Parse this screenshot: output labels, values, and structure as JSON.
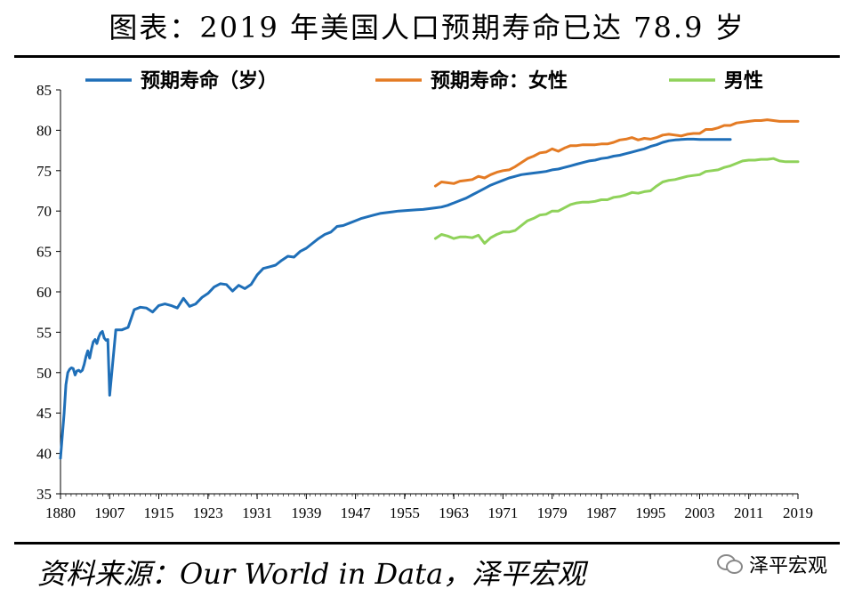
{
  "title": "图表：2019 年美国人口预期寿命已达 78.9 岁",
  "source": "资料来源：Our World in Data，泽平宏观",
  "watermark": "泽平宏观",
  "colors": {
    "total": "#1f6fb8",
    "female": "#e47b24",
    "male": "#8fd25a"
  },
  "chart_data": {
    "type": "line",
    "title": "图表：2019 年美国人口预期寿命已达 78.9 岁",
    "xlabel": "",
    "ylabel": "",
    "xlim": [
      1880,
      2019
    ],
    "ylim": [
      35,
      85
    ],
    "yticks": [
      35,
      40,
      45,
      50,
      55,
      60,
      65,
      70,
      75,
      80,
      85
    ],
    "xticks": [
      1880,
      1907,
      1915,
      1923,
      1931,
      1939,
      1947,
      1955,
      1963,
      1971,
      1979,
      1987,
      1995,
      2003,
      2011,
      2019
    ],
    "legend_position": "top",
    "series": [
      {
        "name": "预期寿命（岁）",
        "color": "#1f6fb8",
        "points": [
          [
            1880,
            39.4
          ],
          [
            1882,
            45
          ],
          [
            1883,
            48.5
          ],
          [
            1884,
            50
          ],
          [
            1885,
            50.4
          ],
          [
            1886,
            50.6
          ],
          [
            1887,
            50.5
          ],
          [
            1888,
            49.7
          ],
          [
            1889,
            50.2
          ],
          [
            1890,
            50.3
          ],
          [
            1891,
            50.1
          ],
          [
            1892,
            50.3
          ],
          [
            1893,
            51
          ],
          [
            1894,
            52
          ],
          [
            1895,
            52.7
          ],
          [
            1896,
            51.8
          ],
          [
            1897,
            52.9
          ],
          [
            1898,
            53.8
          ],
          [
            1899,
            54.1
          ],
          [
            1900,
            53.6
          ],
          [
            1901,
            54.4
          ],
          [
            1902,
            54.9
          ],
          [
            1903,
            55.1
          ],
          [
            1904,
            54.3
          ],
          [
            1905,
            54
          ],
          [
            1906,
            54.1
          ],
          [
            1907,
            47.2
          ],
          [
            1908,
            55.3
          ],
          [
            1909,
            55.3
          ],
          [
            1910,
            55.6
          ],
          [
            1911,
            57.8
          ],
          [
            1912,
            58.1
          ],
          [
            1913,
            58
          ],
          [
            1914,
            57.5
          ],
          [
            1915,
            58.3
          ],
          [
            1916,
            58.5
          ],
          [
            1917,
            58.3
          ],
          [
            1918,
            58
          ],
          [
            1919,
            59.2
          ],
          [
            1920,
            58.2
          ],
          [
            1921,
            58.5
          ],
          [
            1922,
            59.3
          ],
          [
            1923,
            59.8
          ],
          [
            1924,
            60.6
          ],
          [
            1925,
            61
          ],
          [
            1926,
            60.9
          ],
          [
            1927,
            60.1
          ],
          [
            1928,
            60.8
          ],
          [
            1929,
            60.4
          ],
          [
            1930,
            60.9
          ],
          [
            1931,
            62.1
          ],
          [
            1932,
            62.9
          ],
          [
            1933,
            63.1
          ],
          [
            1934,
            63.3
          ],
          [
            1935,
            63.9
          ],
          [
            1936,
            64.4
          ],
          [
            1937,
            64.3
          ],
          [
            1938,
            65
          ],
          [
            1939,
            65.4
          ],
          [
            1940,
            66
          ],
          [
            1941,
            66.6
          ],
          [
            1942,
            67.1
          ],
          [
            1943,
            67.4
          ],
          [
            1944,
            68.1
          ],
          [
            1945,
            68.2
          ],
          [
            1946,
            68.5
          ],
          [
            1947,
            68.8
          ],
          [
            1948,
            69.1
          ],
          [
            1949,
            69.3
          ],
          [
            1950,
            69.5
          ],
          [
            1951,
            69.7
          ],
          [
            1952,
            69.8
          ],
          [
            1953,
            69.9
          ],
          [
            1954,
            70
          ],
          [
            1955,
            70.05
          ],
          [
            1956,
            70.1
          ],
          [
            1957,
            70.15
          ],
          [
            1958,
            70.2
          ],
          [
            1959,
            70.3
          ],
          [
            1960,
            70.4
          ],
          [
            1961,
            70.5
          ],
          [
            1962,
            70.7
          ],
          [
            1963,
            71
          ],
          [
            1964,
            71.3
          ],
          [
            1965,
            71.6
          ],
          [
            1966,
            72
          ],
          [
            1967,
            72.4
          ],
          [
            1968,
            72.8
          ],
          [
            1969,
            73.2
          ],
          [
            1970,
            73.5
          ],
          [
            1971,
            73.8
          ],
          [
            1972,
            74.1
          ],
          [
            1973,
            74.3
          ],
          [
            1974,
            74.5
          ],
          [
            1975,
            74.6
          ],
          [
            1976,
            74.7
          ],
          [
            1977,
            74.8
          ],
          [
            1978,
            74.9
          ],
          [
            1979,
            75.1
          ],
          [
            1980,
            75.2
          ],
          [
            1981,
            75.4
          ],
          [
            1982,
            75.6
          ],
          [
            1983,
            75.8
          ],
          [
            1984,
            76
          ],
          [
            1985,
            76.2
          ],
          [
            1986,
            76.3
          ],
          [
            1987,
            76.5
          ],
          [
            1988,
            76.6
          ],
          [
            1989,
            76.8
          ],
          [
            1990,
            76.9
          ],
          [
            1991,
            77.1
          ],
          [
            1992,
            77.3
          ],
          [
            1993,
            77.5
          ],
          [
            1994,
            77.7
          ],
          [
            1995,
            78
          ],
          [
            1996,
            78.2
          ],
          [
            1997,
            78.5
          ],
          [
            1998,
            78.7
          ],
          [
            1999,
            78.8
          ],
          [
            2000,
            78.85
          ],
          [
            2001,
            78.9
          ],
          [
            2002,
            78.9
          ],
          [
            2003,
            78.85
          ],
          [
            2004,
            78.85
          ],
          [
            2005,
            78.85
          ],
          [
            2006,
            78.85
          ],
          [
            2007,
            78.85
          ],
          [
            2008,
            78.85
          ]
        ]
      },
      {
        "name": "预期寿命：女性",
        "color": "#e47b24",
        "points": [
          [
            1960,
            73.1
          ],
          [
            1961,
            73.6
          ],
          [
            1962,
            73.5
          ],
          [
            1963,
            73.4
          ],
          [
            1964,
            73.7
          ],
          [
            1965,
            73.8
          ],
          [
            1966,
            73.9
          ],
          [
            1967,
            74.3
          ],
          [
            1968,
            74.1
          ],
          [
            1969,
            74.5
          ],
          [
            1970,
            74.8
          ],
          [
            1971,
            75
          ],
          [
            1972,
            75.1
          ],
          [
            1973,
            75.5
          ],
          [
            1974,
            76
          ],
          [
            1975,
            76.5
          ],
          [
            1976,
            76.8
          ],
          [
            1977,
            77.2
          ],
          [
            1978,
            77.3
          ],
          [
            1979,
            77.7
          ],
          [
            1980,
            77.4
          ],
          [
            1981,
            77.8
          ],
          [
            1982,
            78.1
          ],
          [
            1983,
            78.1
          ],
          [
            1984,
            78.2
          ],
          [
            1985,
            78.2
          ],
          [
            1986,
            78.2
          ],
          [
            1987,
            78.3
          ],
          [
            1988,
            78.3
          ],
          [
            1989,
            78.5
          ],
          [
            1990,
            78.8
          ],
          [
            1991,
            78.9
          ],
          [
            1992,
            79.1
          ],
          [
            1993,
            78.8
          ],
          [
            1994,
            79
          ],
          [
            1995,
            78.9
          ],
          [
            1996,
            79.1
          ],
          [
            1997,
            79.4
          ],
          [
            1998,
            79.5
          ],
          [
            1999,
            79.4
          ],
          [
            2000,
            79.3
          ],
          [
            2001,
            79.5
          ],
          [
            2002,
            79.6
          ],
          [
            2003,
            79.6
          ],
          [
            2004,
            80.1
          ],
          [
            2005,
            80.1
          ],
          [
            2006,
            80.3
          ],
          [
            2007,
            80.6
          ],
          [
            2008,
            80.6
          ],
          [
            2009,
            80.9
          ],
          [
            2010,
            81
          ],
          [
            2011,
            81.1
          ],
          [
            2012,
            81.2
          ],
          [
            2013,
            81.2
          ],
          [
            2014,
            81.3
          ],
          [
            2015,
            81.2
          ],
          [
            2016,
            81.1
          ],
          [
            2017,
            81.1
          ],
          [
            2018,
            81.1
          ],
          [
            2019,
            81.1
          ]
        ]
      },
      {
        "name": "男性",
        "color": "#8fd25a",
        "points": [
          [
            1960,
            66.6
          ],
          [
            1961,
            67.1
          ],
          [
            1962,
            66.9
          ],
          [
            1963,
            66.6
          ],
          [
            1964,
            66.8
          ],
          [
            1965,
            66.8
          ],
          [
            1966,
            66.7
          ],
          [
            1967,
            67
          ],
          [
            1968,
            66
          ],
          [
            1969,
            66.7
          ],
          [
            1970,
            67.1
          ],
          [
            1971,
            67.4
          ],
          [
            1972,
            67.4
          ],
          [
            1973,
            67.6
          ],
          [
            1974,
            68.2
          ],
          [
            1975,
            68.8
          ],
          [
            1976,
            69.1
          ],
          [
            1977,
            69.5
          ],
          [
            1978,
            69.6
          ],
          [
            1979,
            70
          ],
          [
            1980,
            70
          ],
          [
            1981,
            70.4
          ],
          [
            1982,
            70.8
          ],
          [
            1983,
            71
          ],
          [
            1984,
            71.1
          ],
          [
            1985,
            71.1
          ],
          [
            1986,
            71.2
          ],
          [
            1987,
            71.4
          ],
          [
            1988,
            71.4
          ],
          [
            1989,
            71.7
          ],
          [
            1990,
            71.8
          ],
          [
            1991,
            72
          ],
          [
            1992,
            72.3
          ],
          [
            1993,
            72.2
          ],
          [
            1994,
            72.4
          ],
          [
            1995,
            72.5
          ],
          [
            1996,
            73.1
          ],
          [
            1997,
            73.6
          ],
          [
            1998,
            73.8
          ],
          [
            1999,
            73.9
          ],
          [
            2000,
            74.1
          ],
          [
            2001,
            74.3
          ],
          [
            2002,
            74.4
          ],
          [
            2003,
            74.5
          ],
          [
            2004,
            74.9
          ],
          [
            2005,
            75
          ],
          [
            2006,
            75.1
          ],
          [
            2007,
            75.4
          ],
          [
            2008,
            75.6
          ],
          [
            2009,
            75.9
          ],
          [
            2010,
            76.2
          ],
          [
            2011,
            76.3
          ],
          [
            2012,
            76.3
          ],
          [
            2013,
            76.4
          ],
          [
            2014,
            76.4
          ],
          [
            2015,
            76.5
          ],
          [
            2016,
            76.2
          ],
          [
            2017,
            76.1
          ],
          [
            2018,
            76.1
          ],
          [
            2019,
            76.1
          ]
        ]
      }
    ]
  }
}
